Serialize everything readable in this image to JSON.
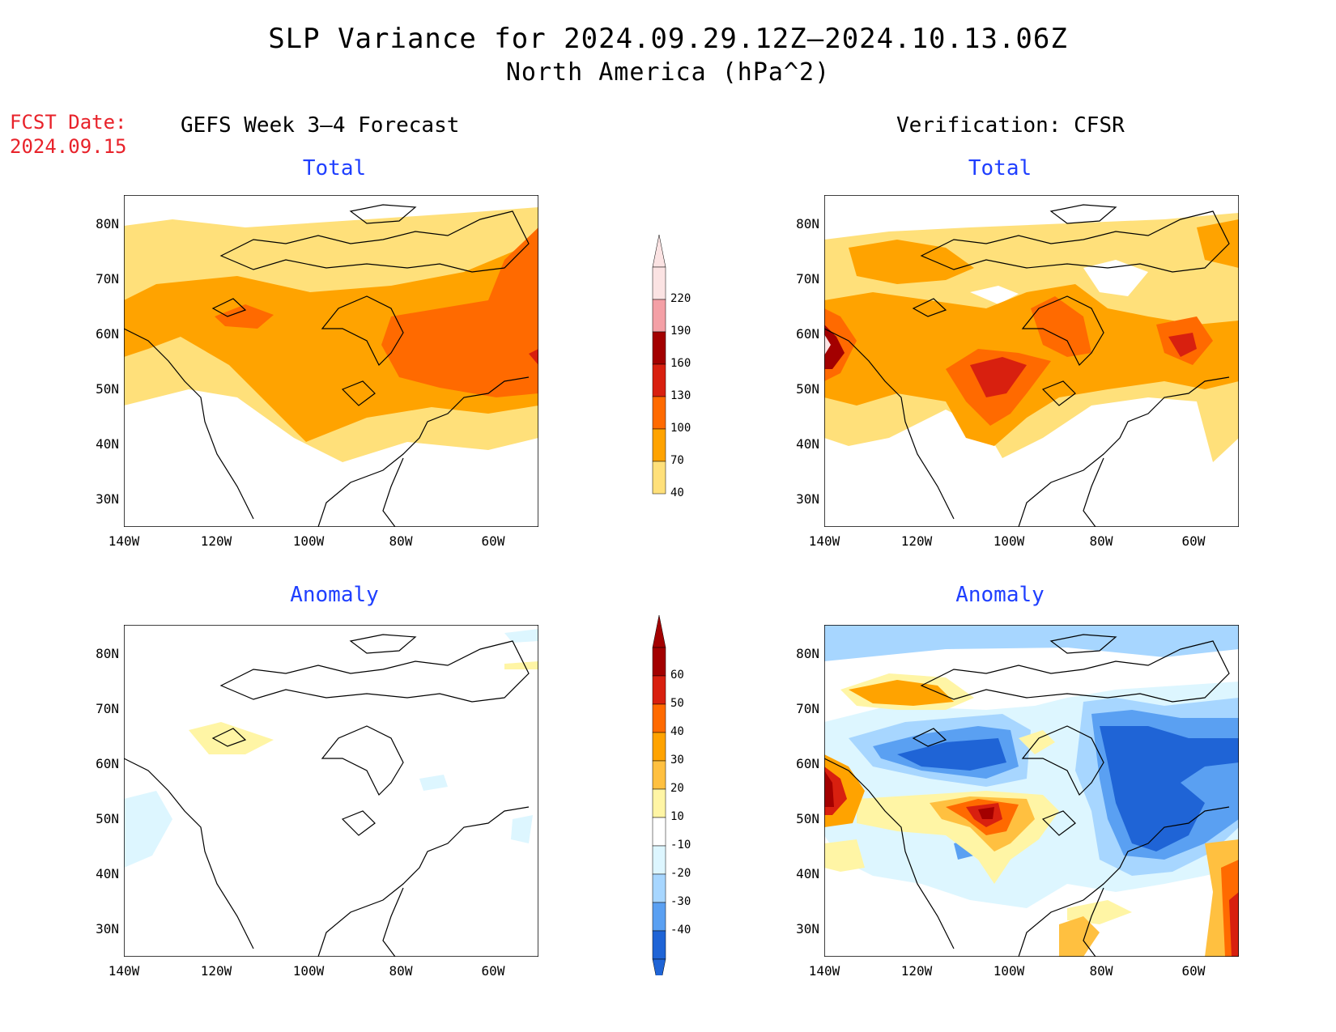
{
  "title": {
    "line1": "SLP Variance for 2024.09.29.12Z–2024.10.13.06Z",
    "line2": "North America (hPa^2)"
  },
  "forecast_date": {
    "label": "FCST Date:",
    "value": "2024.09.15"
  },
  "columns": {
    "left": "GEFS Week 3–4 Forecast",
    "right": "Verification: CFSR"
  },
  "panels": {
    "total_label": "Total",
    "anomaly_label": "Anomaly"
  },
  "axes": {
    "lat_ticks": [
      "80N",
      "70N",
      "60N",
      "50N",
      "40N",
      "30N"
    ],
    "lon_ticks": [
      "140W",
      "120W",
      "100W",
      "80W",
      "60W"
    ]
  },
  "colorbar_total": {
    "labels": [
      "220",
      "190",
      "160",
      "130",
      "100",
      "70",
      "40"
    ],
    "colors": [
      "#fbe3e3",
      "#f4a0a6",
      "#a30000",
      "#d8200f",
      "#ff6a00",
      "#ffa300",
      "#ffe07a"
    ]
  },
  "colorbar_anomaly": {
    "labels": [
      "60",
      "50",
      "40",
      "30",
      "20",
      "10",
      "-10",
      "-20",
      "-30",
      "-40"
    ],
    "colors": [
      "#a30000",
      "#d8200f",
      "#ff6a00",
      "#ffa300",
      "#ffc040",
      "#fff5a5",
      "#ffffff",
      "#ddf6ff",
      "#a7d6ff",
      "#5aa0f2",
      "#1f64d6"
    ]
  },
  "chart_data": [
    {
      "type": "heatmap",
      "title": "Total",
      "subtitle": "GEFS Week 3–4 Forecast",
      "xlim": [
        -140,
        -50
      ],
      "ylim": [
        25,
        85
      ],
      "regions": [
        {
          "level": "40-70",
          "area": "broad band 35N-85N"
        },
        {
          "level": "70-100",
          "area": "Canada 45N-70N"
        },
        {
          "level": "100-130",
          "area": "Hudson Bay / Quebec / Greenland"
        }
      ]
    },
    {
      "type": "heatmap",
      "title": "Total",
      "subtitle": "Verification: CFSR",
      "xlim": [
        -140,
        -50
      ],
      "ylim": [
        25,
        85
      ],
      "regions": [
        {
          "level": "40-70",
          "area": "broad band 35N-85N"
        },
        {
          "level": "70-100",
          "area": "central Canada, Gulf of Alaska"
        },
        {
          "level": "100-130",
          "area": "Manitoba, Hudson Bay, Labrador"
        },
        {
          "level": "130-160",
          "area": "Manitoba 50N 100W, Labrador"
        },
        {
          "level": "160-220",
          "area": "Gulf of Alaska coast 52N 140W"
        }
      ]
    },
    {
      "type": "heatmap",
      "title": "Anomaly",
      "subtitle": "GEFS Week 3–4 Forecast",
      "xlim": [
        -140,
        -50
      ],
      "ylim": [
        25,
        85
      ],
      "regions": [
        {
          "level": "10-20",
          "area": "small patch 63N 115W"
        },
        {
          "level": "-20 to -10",
          "area": "Pacific coast 45N-55N, scattered"
        }
      ]
    },
    {
      "type": "heatmap",
      "title": "Anomaly",
      "subtitle": "Verification: CFSR",
      "xlim": [
        -140,
        -50
      ],
      "ylim": [
        25,
        85
      ],
      "regions": [
        {
          "level": "10-40",
          "area": "Beaufort Sea 72N 115W"
        },
        {
          "level": "-40 to -10",
          "area": "band 60N-65N 125W-95W"
        },
        {
          "level": "20-60",
          "area": "Manitoba 50N 100W"
        },
        {
          "level": "-40 to -10",
          "area": "eastern Canada 45N-65N 80W-50W"
        },
        {
          "level": "30-60",
          "area": "Gulf of Alaska 52N 140W"
        }
      ]
    }
  ]
}
